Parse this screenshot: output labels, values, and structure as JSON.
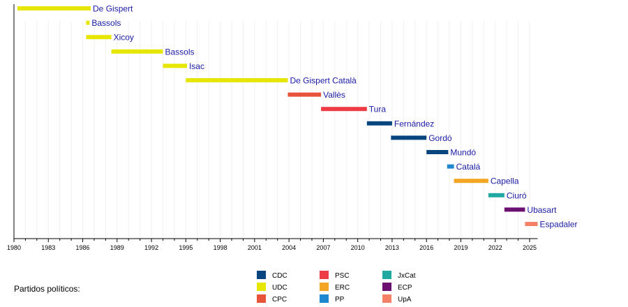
{
  "chart_data": {
    "type": "bar",
    "subtype": "timeline-gantt",
    "title": "",
    "xlabel": "",
    "ylabel": "",
    "xlim": [
      1980,
      2025.7
    ],
    "x_ticks": [
      1980,
      1983,
      1986,
      1989,
      1992,
      1995,
      1998,
      2001,
      2004,
      2007,
      2010,
      2013,
      2016,
      2019,
      2022,
      2025
    ],
    "grid": "vertical minor gridlines every year",
    "series": [
      {
        "name": "De Gispert",
        "party": "UDC",
        "start": 1980.3,
        "end": 1986.7
      },
      {
        "name": "Bassols",
        "party": "UDC",
        "start": 1986.3,
        "end": 1986.6
      },
      {
        "name": "Xicoy",
        "party": "UDC",
        "start": 1986.3,
        "end": 1988.5
      },
      {
        "name": "Bassols",
        "party": "UDC",
        "start": 1988.5,
        "end": 1993.0
      },
      {
        "name": "Isac",
        "party": "UDC",
        "start": 1993.0,
        "end": 1995.1
      },
      {
        "name": "De Gispert Català",
        "party": "UDC",
        "start": 1995.0,
        "end": 2003.9
      },
      {
        "name": "Vallès",
        "party": "CPC",
        "start": 2003.9,
        "end": 2006.8
      },
      {
        "name": "Tura",
        "party": "PSC",
        "start": 2006.8,
        "end": 2010.8
      },
      {
        "name": "Fernández",
        "party": "CDC",
        "start": 2010.8,
        "end": 2013.0
      },
      {
        "name": "Gordó",
        "party": "CDC",
        "start": 2012.9,
        "end": 2016.0
      },
      {
        "name": "Mundó",
        "party": "CDC",
        "start": 2016.0,
        "end": 2017.9
      },
      {
        "name": "Catalá",
        "party": "PP",
        "start": 2017.8,
        "end": 2018.4
      },
      {
        "name": "Capella",
        "party": "ERC",
        "start": 2018.4,
        "end": 2021.4
      },
      {
        "name": "Ciuró",
        "party": "JxCat",
        "start": 2021.4,
        "end": 2022.8
      },
      {
        "name": "Ubasart",
        "party": "ECP",
        "start": 2022.8,
        "end": 2024.6
      },
      {
        "name": "Espadaler",
        "party": "UpA",
        "start": 2024.6,
        "end": 2025.7
      }
    ],
    "legend": {
      "title": "Partidos políticos:",
      "placement": "bottom",
      "entries": [
        {
          "label": "CDC",
          "color": "#08457e"
        },
        {
          "label": "UDC",
          "color": "#e6e600"
        },
        {
          "label": "CPC",
          "color": "#e8543a"
        },
        {
          "label": "PSC",
          "color": "#ee3c46"
        },
        {
          "label": "ERC",
          "color": "#f2a623"
        },
        {
          "label": "PP",
          "color": "#1f86d0"
        },
        {
          "label": "JxCat",
          "color": "#1fa9a0"
        },
        {
          "label": "ECP",
          "color": "#6b1071"
        },
        {
          "label": "UpA",
          "color": "#f58068"
        }
      ]
    }
  }
}
